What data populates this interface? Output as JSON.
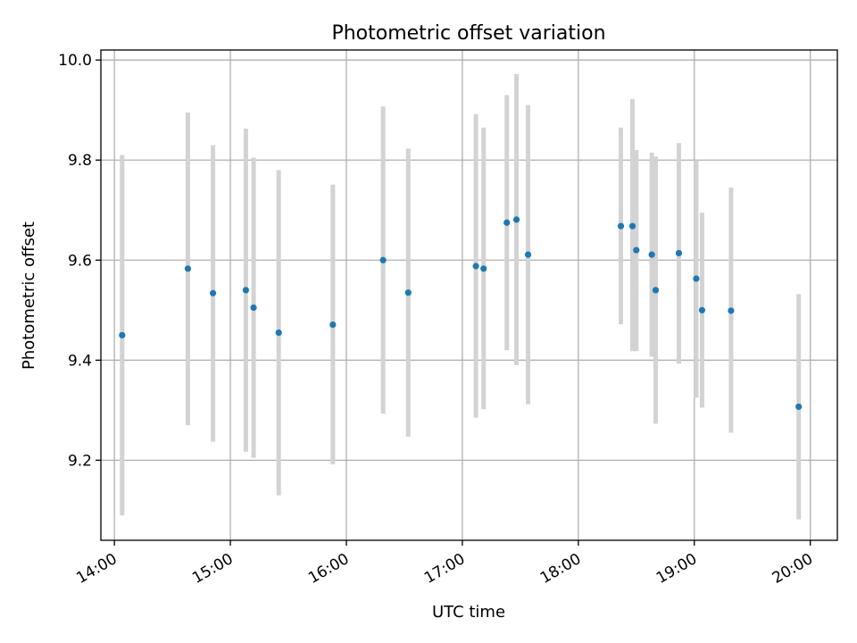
{
  "chart_data": {
    "type": "scatter",
    "title": "Photometric offset variation",
    "xlabel": "UTC time",
    "ylabel": "Photometric offset",
    "x_ticks": [
      "14:00",
      "15:00",
      "16:00",
      "17:00",
      "18:00",
      "19:00",
      "20:00"
    ],
    "y_ticks": [
      "9.2",
      "9.4",
      "9.6",
      "9.8",
      "10.0"
    ],
    "xlim": [
      "13:53",
      "20:14"
    ],
    "ylim": [
      9.04,
      10.02
    ],
    "grid": true,
    "legend": "none",
    "colors": {
      "point": "#1f77b4",
      "error_bar": "#d3d3d3",
      "grid": "#b0b0b0"
    },
    "points": [
      {
        "x": "14:04",
        "y": 9.45,
        "ylow": 9.09,
        "yhigh": 9.81
      },
      {
        "x": "14:38",
        "y": 9.583,
        "ylow": 9.27,
        "yhigh": 9.895
      },
      {
        "x": "14:51",
        "y": 9.534,
        "ylow": 9.237,
        "yhigh": 9.83
      },
      {
        "x": "15:08",
        "y": 9.54,
        "ylow": 9.217,
        "yhigh": 9.863
      },
      {
        "x": "15:12",
        "y": 9.505,
        "ylow": 9.205,
        "yhigh": 9.805
      },
      {
        "x": "15:25",
        "y": 9.455,
        "ylow": 9.13,
        "yhigh": 9.78
      },
      {
        "x": "15:53",
        "y": 9.471,
        "ylow": 9.192,
        "yhigh": 9.751
      },
      {
        "x": "16:19",
        "y": 9.6,
        "ylow": 9.293,
        "yhigh": 9.907
      },
      {
        "x": "16:32",
        "y": 9.535,
        "ylow": 9.247,
        "yhigh": 9.823
      },
      {
        "x": "17:07",
        "y": 9.588,
        "ylow": 9.285,
        "yhigh": 9.892
      },
      {
        "x": "17:11",
        "y": 9.583,
        "ylow": 9.302,
        "yhigh": 9.865
      },
      {
        "x": "17:23",
        "y": 9.675,
        "ylow": 9.42,
        "yhigh": 9.93
      },
      {
        "x": "17:28",
        "y": 9.681,
        "ylow": 9.39,
        "yhigh": 9.972
      },
      {
        "x": "17:34",
        "y": 9.611,
        "ylow": 9.312,
        "yhigh": 9.91
      },
      {
        "x": "18:22",
        "y": 9.668,
        "ylow": 9.472,
        "yhigh": 9.865
      },
      {
        "x": "18:28",
        "y": 9.668,
        "ylow": 9.418,
        "yhigh": 9.922
      },
      {
        "x": "18:30",
        "y": 9.62,
        "ylow": 9.418,
        "yhigh": 9.82
      },
      {
        "x": "18:38",
        "y": 9.611,
        "ylow": 9.407,
        "yhigh": 9.815
      },
      {
        "x": "18:40",
        "y": 9.54,
        "ylow": 9.273,
        "yhigh": 9.807
      },
      {
        "x": "18:52",
        "y": 9.614,
        "ylow": 9.393,
        "yhigh": 9.834
      },
      {
        "x": "19:01",
        "y": 9.563,
        "ylow": 9.325,
        "yhigh": 9.8
      },
      {
        "x": "19:04",
        "y": 9.5,
        "ylow": 9.305,
        "yhigh": 9.695
      },
      {
        "x": "19:19",
        "y": 9.499,
        "ylow": 9.255,
        "yhigh": 9.745
      },
      {
        "x": "19:54",
        "y": 9.307,
        "ylow": 9.082,
        "yhigh": 9.532
      }
    ]
  }
}
